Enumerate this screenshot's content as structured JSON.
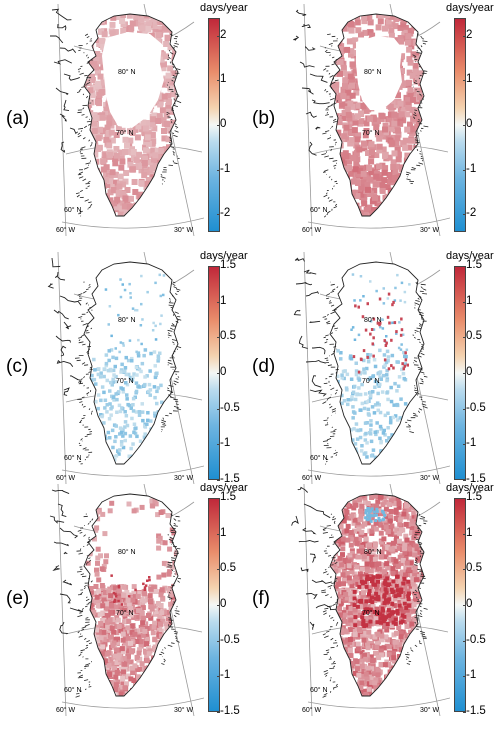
{
  "panels": [
    {
      "id": "a",
      "label": "(a)",
      "unit": "days/year",
      "ticks": [
        "2",
        "1",
        "0",
        "-1",
        "-2"
      ],
      "lat_labels": [
        "80° N",
        "70° N",
        "60° N"
      ],
      "lon_labels": [
        "60° W",
        "30° W"
      ],
      "mode": "positive"
    },
    {
      "id": "b",
      "label": "(b)",
      "unit": "days/year",
      "ticks": [
        "2",
        "1",
        "0",
        "-1",
        "-2"
      ],
      "lat_labels": [
        "80° N",
        "70° N",
        "60° N"
      ],
      "lon_labels": [
        "60° W",
        "30° W"
      ],
      "mode": "positive-strong"
    },
    {
      "id": "c",
      "label": "(c)",
      "unit": "days/year",
      "ticks": [
        "1.5",
        "1",
        "0.5",
        "0",
        "-0.5",
        "-1",
        "-1.5"
      ],
      "lat_labels": [
        "80° N",
        "70° N",
        "60° N"
      ],
      "lon_labels": [
        "60° W",
        "30° W"
      ],
      "mode": "negative-sparse"
    },
    {
      "id": "d",
      "label": "(d)",
      "unit": "days/year",
      "ticks": [
        "1.5",
        "1",
        "0.5",
        "0",
        "-0.5",
        "-1",
        "-1.5"
      ],
      "lat_labels": [
        "80° N",
        "70° N",
        "60° N"
      ],
      "lon_labels": [
        "60° W",
        "30° W"
      ],
      "mode": "mixed-sparse"
    },
    {
      "id": "e",
      "label": "(e)",
      "unit": "days/year",
      "ticks": [
        "1.5",
        "1",
        "0.5",
        "0",
        "-0.5",
        "-1",
        "-1.5"
      ],
      "lat_labels": [
        "80° N",
        "70° N",
        "60° N"
      ],
      "lon_labels": [
        "60° W",
        "30° W"
      ],
      "mode": "positive-margin"
    },
    {
      "id": "f",
      "label": "(f)",
      "unit": "days/year",
      "ticks": [
        "1.5",
        "1",
        "0.5",
        "0",
        "-0.5",
        "-1",
        "-1.5"
      ],
      "lat_labels": [
        "80° N",
        "70° N",
        "60° N"
      ],
      "lon_labels": [
        "60° W",
        "30° W"
      ],
      "mode": "positive-full"
    }
  ],
  "colors": {
    "colormap_low": "#1f8fd1",
    "colormap_mid": "#f4f7f5",
    "colormap_high": "#c0283a",
    "coast": "#222222",
    "graticule": "#9a9a9a"
  }
}
